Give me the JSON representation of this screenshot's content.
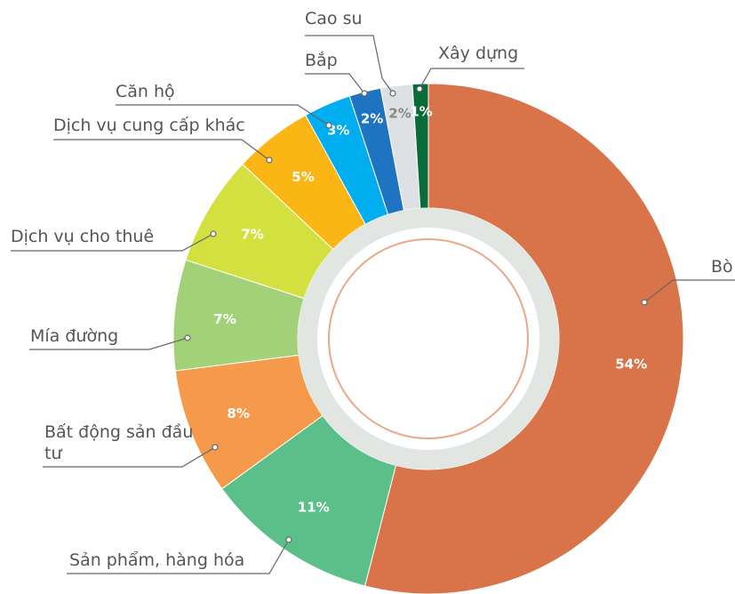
{
  "chart_data": {
    "type": "donut",
    "categories": [
      "Bò",
      "Sản phẩm, hàng hóa",
      "Bất động sản đầu tư",
      "Mía đường",
      "Dịch vụ cho thuê",
      "Dịch vụ cung cấp khác",
      "Căn hộ",
      "Bắp",
      "Cao su",
      "Xây dựng"
    ],
    "values": [
      54,
      11,
      8,
      7,
      7,
      5,
      3,
      2,
      2,
      1
    ],
    "value_labels": [
      "54%",
      "11%",
      "8%",
      "7%",
      "7%",
      "5%",
      "3%",
      "2%",
      "2%",
      "1%"
    ],
    "colors": [
      "#d9744a",
      "#5bbf8a",
      "#f49a4a",
      "#a3d17a",
      "#d4e03f",
      "#fbb515",
      "#00aeef",
      "#1f74c2",
      "#dde1e3",
      "#0a6b3a"
    ]
  }
}
